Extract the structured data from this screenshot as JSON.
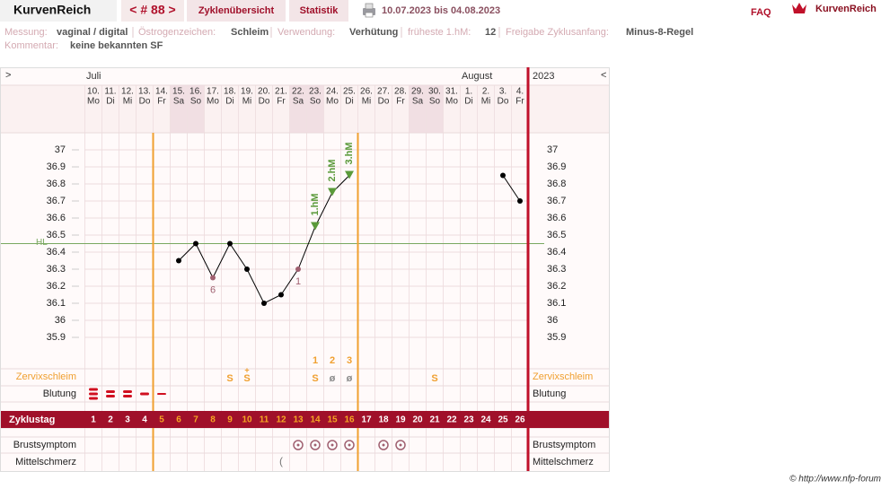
{
  "header": {
    "brand": "KurvenReich",
    "cycle_nav": "< # 88 >",
    "tabs": [
      "Zyklenübersicht",
      "Statistik"
    ],
    "date_range": "10.07.2023 bis 04.08.2023",
    "faq": "FAQ",
    "logo": "KurvenReich"
  },
  "info": {
    "fields": [
      {
        "label": "Messung:",
        "value": "vaginal / digital"
      },
      {
        "label": "Östrogenzeichen:",
        "value": "Schleim"
      },
      {
        "label": "Verwendung:",
        "value": "Verhütung"
      },
      {
        "label": "früheste 1.hM:",
        "value": "12"
      },
      {
        "label": "Freigabe Zyklusanfang:",
        "value": "Minus-8-Regel"
      }
    ],
    "comment": {
      "label": "Kommentar:",
      "value": "keine bekannten SF"
    }
  },
  "chart_data": {
    "type": "line",
    "nav_prev": ">",
    "nav_next": "<",
    "year": "2023",
    "month_labels": [
      "Juli",
      null,
      null,
      null,
      null,
      null,
      null,
      null,
      null,
      null,
      null,
      null,
      null,
      null,
      null,
      null,
      null,
      null,
      null,
      null,
      null,
      null,
      "August",
      null,
      null,
      null
    ],
    "categories": [
      "10.",
      "11.",
      "12.",
      "13.",
      "14.",
      "15.",
      "16.",
      "17.",
      "18.",
      "19.",
      "20.",
      "21.",
      "22.",
      "23.",
      "24.",
      "25.",
      "26.",
      "27.",
      "28.",
      "29.",
      "30.",
      "31.",
      "1.",
      "2.",
      "3.",
      "4."
    ],
    "weekdays": [
      "Mo",
      "Di",
      "Mi",
      "Do",
      "Fr",
      "Sa",
      "So",
      "Mo",
      "Di",
      "Mi",
      "Do",
      "Fr",
      "Sa",
      "So",
      "Mo",
      "Di",
      "Mi",
      "Do",
      "Fr",
      "Sa",
      "So",
      "Mo",
      "Di",
      "Mi",
      "Do",
      "Fr"
    ],
    "shaded": [
      false,
      false,
      false,
      false,
      false,
      true,
      true,
      false,
      false,
      false,
      false,
      false,
      true,
      true,
      false,
      false,
      false,
      false,
      false,
      true,
      true,
      false,
      false,
      false,
      false,
      false
    ],
    "values": [
      null,
      null,
      null,
      null,
      null,
      36.35,
      36.45,
      36.25,
      36.45,
      36.3,
      36.1,
      36.15,
      36.3,
      36.55,
      36.75,
      36.85,
      null,
      null,
      null,
      null,
      null,
      null,
      null,
      null,
      36.85,
      36.7
    ],
    "color": "#000000",
    "low_point_color": "#a06070",
    "hm_color": "#5a9a3a",
    "point_labels": [
      null,
      null,
      null,
      null,
      null,
      null,
      null,
      "6",
      null,
      null,
      null,
      null,
      "1",
      null,
      null,
      null,
      null,
      null,
      null,
      null,
      null,
      null,
      null,
      null,
      null,
      null
    ],
    "hm_labels": [
      null,
      null,
      null,
      null,
      null,
      null,
      null,
      null,
      null,
      null,
      null,
      null,
      null,
      "1.hM",
      "2.hM",
      "3.hM",
      null,
      null,
      null,
      null,
      null,
      null,
      null,
      null,
      null,
      null
    ],
    "cover_line": {
      "label": "HL",
      "value": 36.45,
      "color": "#7aa860"
    },
    "ylim": [
      35.8,
      37.1
    ],
    "yticks": [
      37,
      36.9,
      36.8,
      36.7,
      36.6,
      36.5,
      36.4,
      36.3,
      36.2,
      36.1,
      36,
      35.9
    ],
    "mucus_label": "Zervixschleim",
    "mucus_counts": [
      null,
      null,
      null,
      null,
      null,
      null,
      null,
      null,
      null,
      null,
      null,
      null,
      null,
      1,
      2,
      3,
      null,
      null,
      null,
      null,
      null,
      null,
      null,
      null,
      null,
      null
    ],
    "mucus": [
      null,
      null,
      null,
      null,
      null,
      null,
      null,
      null,
      "S",
      "S",
      null,
      null,
      null,
      "S",
      "ø",
      "ø",
      null,
      null,
      null,
      null,
      "S",
      null,
      null,
      null,
      null,
      null
    ],
    "mucus_marks": [
      null,
      null,
      null,
      null,
      null,
      null,
      null,
      null,
      null,
      "+",
      null,
      null,
      null,
      null,
      null,
      null,
      null,
      null,
      null,
      null,
      null,
      null,
      null,
      null,
      null,
      null
    ],
    "bleeding_label": "Blutung",
    "bleeding": [
      4,
      3,
      3,
      2,
      1,
      null,
      null,
      null,
      null,
      null,
      null,
      null,
      null,
      null,
      null,
      null,
      null,
      null,
      null,
      null,
      null,
      null,
      null,
      null,
      null,
      null
    ],
    "cycle_day_label": "Zyklustag",
    "cycle_days": [
      1,
      2,
      3,
      4,
      5,
      6,
      7,
      8,
      9,
      10,
      11,
      12,
      13,
      14,
      15,
      16,
      17,
      18,
      19,
      20,
      21,
      22,
      23,
      24,
      25,
      26
    ],
    "fertile_window": [
      5,
      16
    ],
    "breast_label": "Brustsymptom",
    "breast": [
      null,
      null,
      null,
      null,
      null,
      null,
      null,
      null,
      null,
      null,
      null,
      null,
      1,
      1,
      1,
      1,
      null,
      1,
      1,
      null,
      null,
      null,
      null,
      null,
      null,
      null
    ],
    "pain_label": "Mittelschmerz",
    "pain": [
      null,
      null,
      null,
      null,
      null,
      null,
      null,
      null,
      null,
      null,
      null,
      "(",
      null,
      null,
      null,
      null,
      null,
      null,
      null,
      null,
      null,
      null,
      null,
      null,
      null,
      null
    ]
  },
  "footer": "© http://www.nfp-forum.de"
}
